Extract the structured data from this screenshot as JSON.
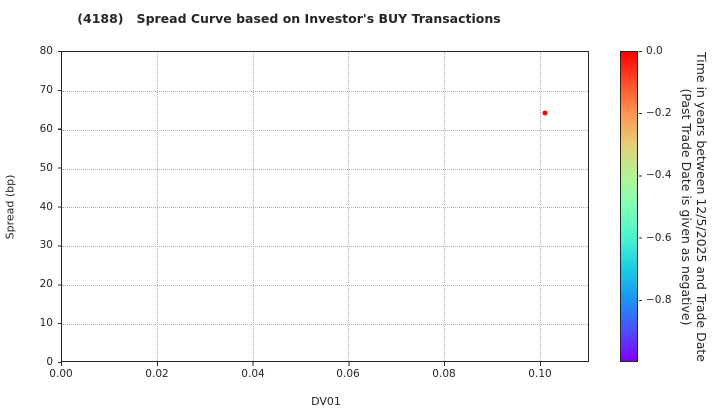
{
  "chart_data": {
    "type": "scatter",
    "title": "(4188)   Spread Curve based on Investor's BUY Transactions",
    "xlabel": "DV01",
    "ylabel": "Spread (bp)",
    "xlim": [
      0.0,
      0.11
    ],
    "ylim": [
      0,
      80
    ],
    "xticks": [
      "0.00",
      "0.02",
      "0.04",
      "0.06",
      "0.08",
      "0.10"
    ],
    "yticks": [
      "0",
      "10",
      "20",
      "30",
      "40",
      "50",
      "60",
      "70",
      "80"
    ],
    "grid": "dotted",
    "legend_position": "none",
    "points": [
      {
        "x": 0.101,
        "y": 64.3,
        "color": "#ff0000",
        "colorbar_value": 0.0
      }
    ],
    "colorbar": {
      "ticks": [
        "0.0",
        "−0.2",
        "−0.4",
        "−0.6",
        "−0.8"
      ],
      "range_top": 0.0,
      "range_bottom": -1.0,
      "label_line1": "Time in years between 12/5/2025 and Trade Date",
      "label_line2": "(Past Trade Date is given as negative)",
      "colormap": "rainbow (red = recent, violet = oldest)",
      "gradient_stops": [
        "#ff0000 0%",
        "#ff4f28 10%",
        "#ff964f 20%",
        "#e6ce74 30%",
        "#b3f396 40%",
        "#80ffb5 50%",
        "#4df3ce 60%",
        "#1acee3 70%",
        "#1a96f3 80%",
        "#4d4ffc 90%",
        "#8000ff 100%"
      ]
    },
    "colors": {
      "point": "#ff0000",
      "text": "#262626",
      "grid": "#b0b0b0",
      "spine": "#262626",
      "background": "#ffffff"
    }
  }
}
